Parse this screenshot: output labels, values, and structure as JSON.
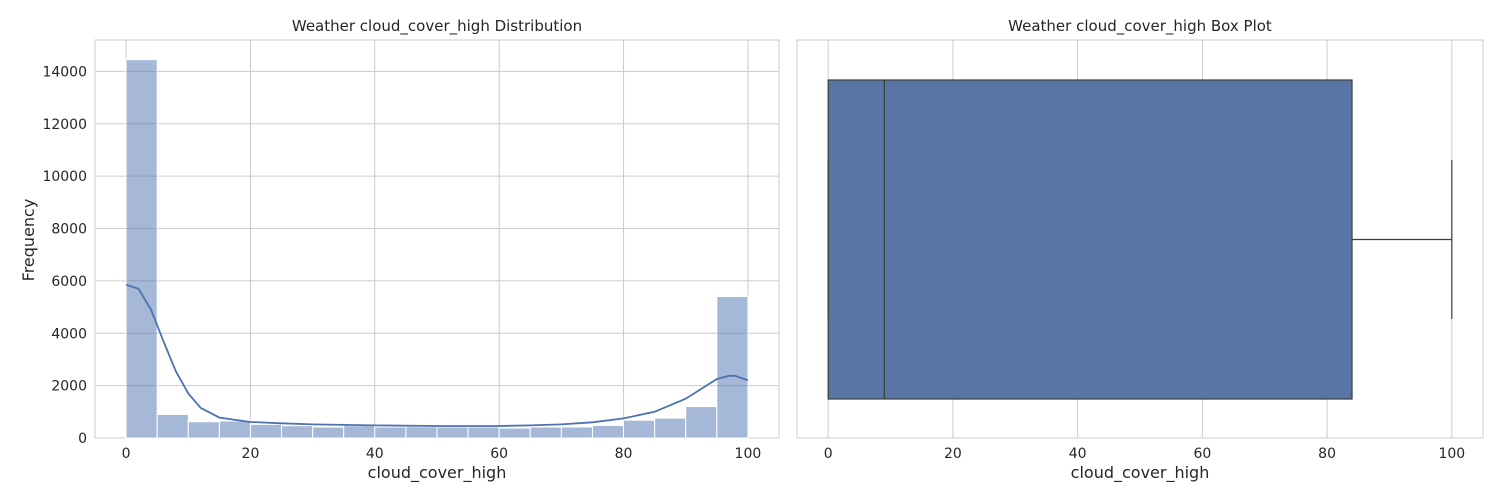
{
  "chart_data": [
    {
      "type": "bar",
      "subtype": "histogram-with-kde",
      "title": "Weather cloud_cover_high Distribution",
      "xlabel": "cloud_cover_high",
      "ylabel": "Frequency",
      "xlim": [
        -5,
        105
      ],
      "ylim": [
        0,
        15200
      ],
      "xticks": [
        0,
        20,
        40,
        60,
        80,
        100
      ],
      "yticks": [
        0,
        2000,
        4000,
        6000,
        8000,
        10000,
        12000,
        14000
      ],
      "grid": true,
      "color": "#4c72b0",
      "bin_width": 5,
      "bin_starts": [
        0,
        5,
        10,
        15,
        20,
        25,
        30,
        35,
        40,
        45,
        50,
        55,
        60,
        65,
        70,
        75,
        80,
        85,
        90,
        95
      ],
      "values": [
        14450,
        900,
        620,
        650,
        520,
        470,
        420,
        470,
        420,
        430,
        420,
        420,
        380,
        420,
        420,
        480,
        680,
        760,
        1200,
        5400
      ],
      "kde": {
        "x": [
          0,
          2,
          4,
          6,
          8,
          10,
          12,
          15,
          20,
          25,
          30,
          40,
          50,
          60,
          65,
          70,
          75,
          80,
          85,
          90,
          93,
          95,
          97,
          98,
          100
        ],
        "y": [
          5850,
          5700,
          4900,
          3700,
          2550,
          1700,
          1150,
          780,
          610,
          560,
          520,
          480,
          460,
          460,
          480,
          520,
          600,
          750,
          1000,
          1500,
          1950,
          2250,
          2380,
          2370,
          2200
        ]
      }
    },
    {
      "type": "box",
      "title": "Weather cloud_cover_high Box Plot",
      "xlabel": "cloud_cover_high",
      "xlim": [
        -5,
        105
      ],
      "xticks": [
        0,
        20,
        40,
        60,
        80,
        100
      ],
      "grid": true,
      "color": "#5875a4",
      "whisker_low": 0,
      "q1": 0,
      "median": 9,
      "q3": 84,
      "whisker_high": 100
    }
  ]
}
